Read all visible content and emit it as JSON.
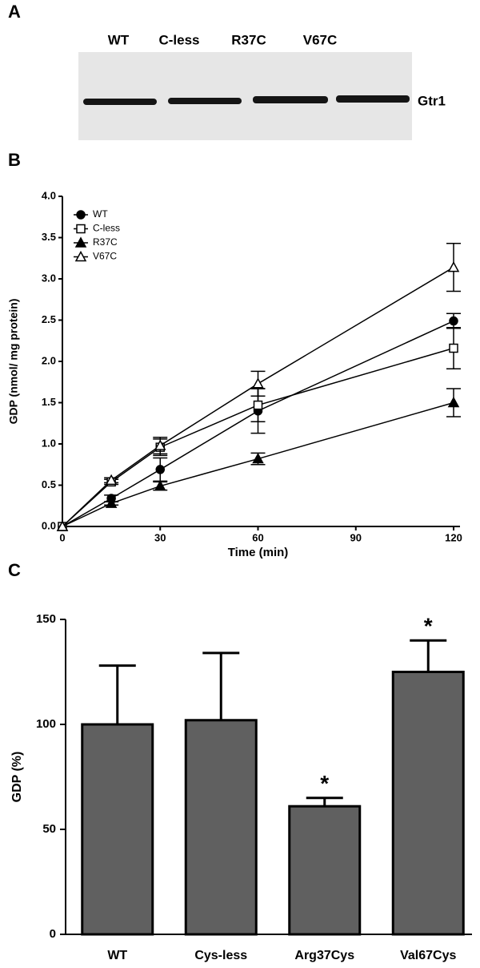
{
  "panel_labels": [
    "A",
    "B",
    "C"
  ],
  "blot": {
    "lanes": [
      "WT",
      "C-less",
      "R37C",
      "V67C"
    ],
    "band_label": "Gtr1"
  },
  "chart_data": [
    {
      "type": "line",
      "x_label": "Time (min)",
      "y_label": "GDP (nmol/ mg protein)",
      "x": [
        0,
        15,
        30,
        60,
        120
      ],
      "series": [
        {
          "name": "WT",
          "color": "#000000",
          "marker": "circle",
          "filled": true,
          "values": [
            0,
            0.34,
            0.69,
            1.4,
            2.49
          ],
          "errors": [
            0,
            0.04,
            0.14,
            0.27,
            0.09
          ]
        },
        {
          "name": "C-less",
          "color": "#000000",
          "marker": "square",
          "filled": false,
          "values": [
            0,
            0.54,
            0.96,
            1.47,
            2.16
          ],
          "errors": [
            0,
            0.03,
            0.1,
            0.2,
            0.25
          ]
        },
        {
          "name": "R37C",
          "color": "#000000",
          "marker": "triangle",
          "filled": true,
          "values": [
            0,
            0.28,
            0.49,
            0.82,
            1.5
          ],
          "errors": [
            0,
            0.02,
            0.05,
            0.07,
            0.17
          ]
        },
        {
          "name": "V67C",
          "color": "#000000",
          "marker": "triangle",
          "filled": false,
          "values": [
            0,
            0.56,
            0.98,
            1.73,
            3.14
          ],
          "errors": [
            0,
            0.03,
            0.1,
            0.15,
            0.29
          ]
        }
      ],
      "xlim": [
        0,
        120
      ],
      "xticks": [
        0,
        30,
        60,
        90,
        120
      ],
      "ylim": [
        0,
        4
      ],
      "yticks": [
        {
          "value": 0,
          "label": "0.0"
        },
        {
          "value": 0.5,
          "label": "0.5"
        },
        {
          "value": 1,
          "label": "1.0"
        },
        {
          "value": 1.5,
          "label": "1.5"
        },
        {
          "value": 2,
          "label": "2.0"
        },
        {
          "value": 2.5,
          "label": "2.5"
        },
        {
          "value": 3,
          "label": "3.0"
        },
        {
          "value": 3.5,
          "label": "3.5"
        },
        {
          "value": 4,
          "label": "4.0"
        }
      ],
      "legend": "upper left",
      "grid": false
    },
    {
      "type": "bar",
      "y_label": "GDP (%)",
      "categories": [
        "WT",
        "Cys-less",
        "Arg37Cys",
        "Val67Cys"
      ],
      "values": [
        100,
        102,
        61,
        125
      ],
      "errors": [
        28,
        32,
        4,
        15
      ],
      "significance": [
        null,
        null,
        "*",
        "*"
      ],
      "color": "#606060",
      "ylim": [
        0,
        150
      ],
      "yticks": [
        0,
        50,
        100,
        150
      ],
      "grid": false
    }
  ]
}
